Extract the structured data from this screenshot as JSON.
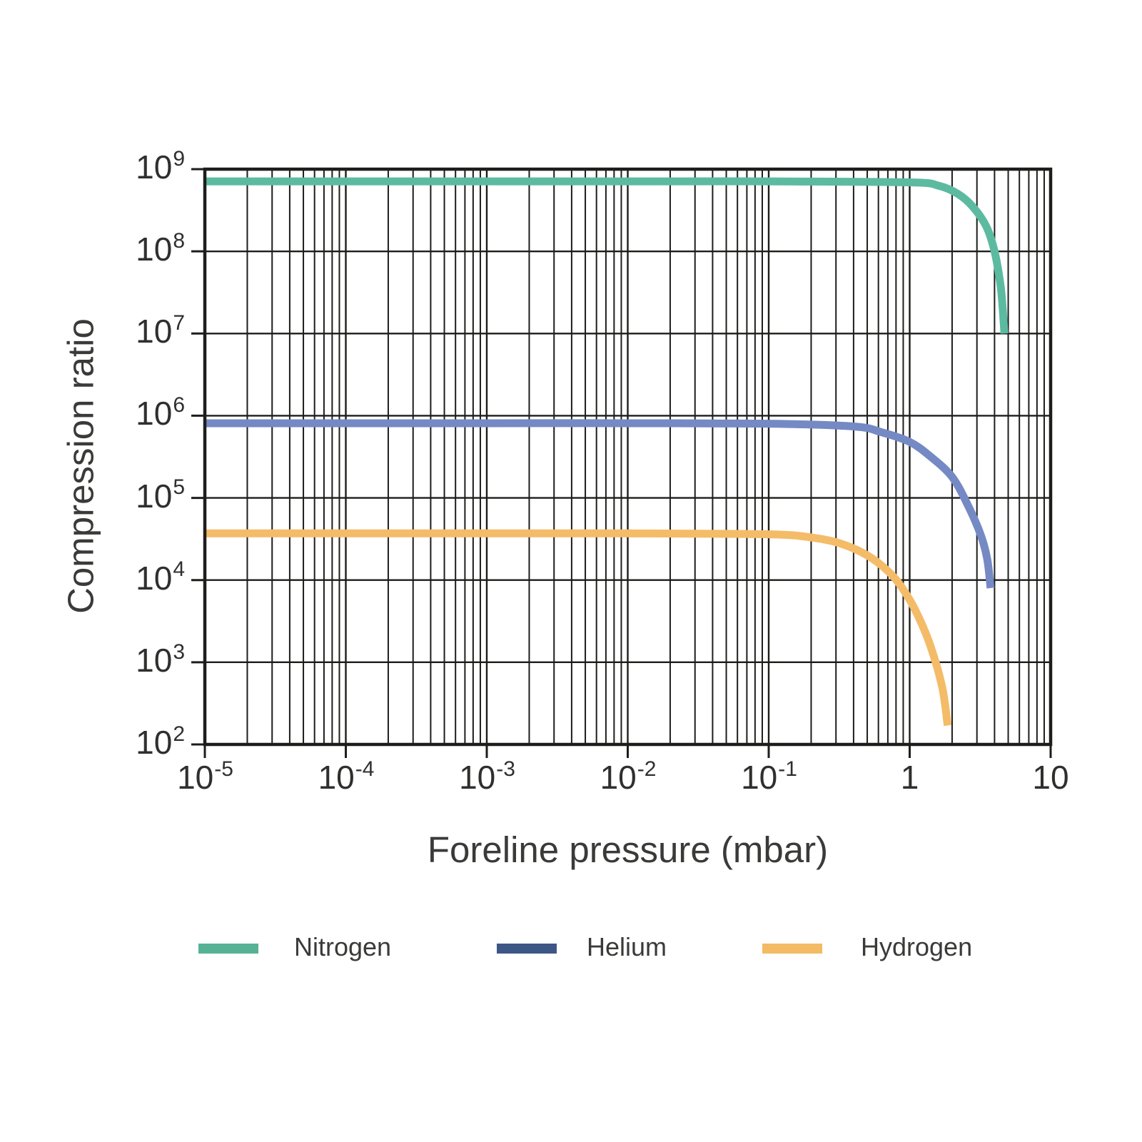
{
  "chart_data": {
    "type": "line",
    "title": "",
    "x_axis": {
      "label": "Foreline pressure (mbar)",
      "scale": "log",
      "min": 1e-05,
      "max": 10,
      "tick_exponents": [
        -5,
        -4,
        -3,
        -2,
        -1,
        0,
        1
      ],
      "tick_labels": [
        "10^-5",
        "10^-4",
        "10^-3",
        "10^-2",
        "10^-1",
        "1",
        "10"
      ]
    },
    "y_axis": {
      "label": "Compression ratio",
      "scale": "log",
      "min": 100.0,
      "max": 1000000000.0,
      "tick_exponents": [
        2,
        3,
        4,
        5,
        6,
        7,
        8,
        9
      ],
      "tick_labels": [
        "10^2",
        "10^3",
        "10^4",
        "10^5",
        "10^6",
        "10^7",
        "10^8",
        "10^9"
      ]
    },
    "grid": {
      "vertical_major": true,
      "vertical_minor": true,
      "horizontal_major": true,
      "horizontal_minor": false,
      "color": "#1d1d1b"
    },
    "style": {
      "frame_color": "#1d1d1b",
      "text_color": "#3a3a39",
      "line_width": 11
    },
    "legend": {
      "position": "bottom",
      "entries": [
        "Nitrogen",
        "Helium",
        "Hydrogen"
      ]
    },
    "series": [
      {
        "name": "Nitrogen",
        "color": "#5cbaa0",
        "legend_color": "#55b295",
        "points": [
          [
            1e-05,
            710000000.0
          ],
          [
            0.0001,
            710000000.0
          ],
          [
            0.001,
            710000000.0
          ],
          [
            0.01,
            710000000.0
          ],
          [
            0.1,
            710000000.0
          ],
          [
            1.0,
            690000000.0
          ],
          [
            1.6,
            630000000.0
          ],
          [
            2.2,
            500000000.0
          ],
          [
            2.8,
            350000000.0
          ],
          [
            3.5,
            200000000.0
          ],
          [
            4.0,
            100000000.0
          ],
          [
            4.4,
            40000000.0
          ],
          [
            4.57,
            20000000.0
          ],
          [
            4.7,
            10000000.0
          ]
        ]
      },
      {
        "name": "Helium",
        "color": "#7589c4",
        "legend_color": "#3c5786",
        "points": [
          [
            1e-05,
            810000.0
          ],
          [
            0.0001,
            810000.0
          ],
          [
            0.001,
            810000.0
          ],
          [
            0.01,
            810000.0
          ],
          [
            0.1,
            800000.0
          ],
          [
            0.4,
            740000.0
          ],
          [
            0.63,
            630000.0
          ],
          [
            1.0,
            480000.0
          ],
          [
            1.4,
            320000.0
          ],
          [
            2.0,
            180000.0
          ],
          [
            2.6,
            80000.0
          ],
          [
            3.2,
            35000.0
          ],
          [
            3.55,
            18000.0
          ],
          [
            3.75,
            8000.0
          ]
        ]
      },
      {
        "name": "Hydrogen",
        "color": "#f4bc68",
        "legend_color": "#f3bb64",
        "points": [
          [
            1e-05,
            37000.0
          ],
          [
            0.0001,
            37000.0
          ],
          [
            0.001,
            37000.0
          ],
          [
            0.01,
            37000.0
          ],
          [
            0.1,
            36000.0
          ],
          [
            0.2,
            33000.0
          ],
          [
            0.32,
            28000.0
          ],
          [
            0.5,
            20000.0
          ],
          [
            0.71,
            12600.0
          ],
          [
            0.89,
            7900.0
          ],
          [
            1.12,
            4000.0
          ],
          [
            1.4,
            1600.0
          ],
          [
            1.7,
            500.0
          ],
          [
            1.86,
            170.0
          ]
        ]
      }
    ]
  }
}
